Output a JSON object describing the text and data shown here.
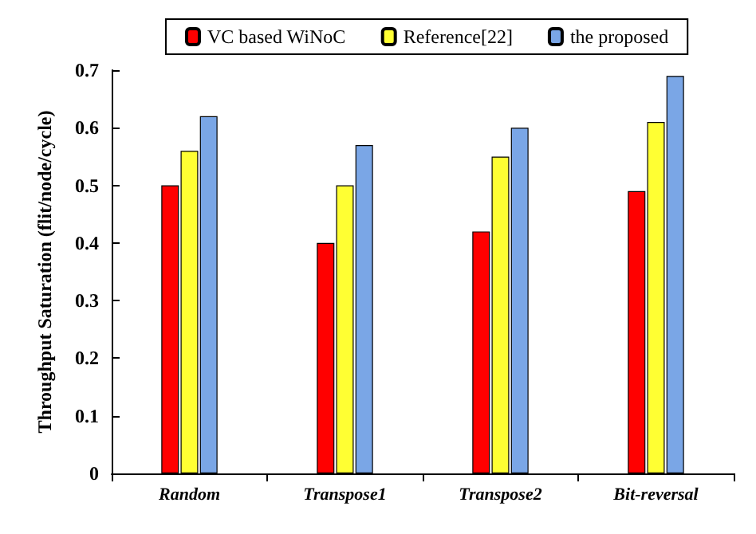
{
  "chart_data": {
    "type": "bar",
    "ylabel": "Throughput Saturation (flit/node/cycle)",
    "categories": [
      "Random",
      "Transpose1",
      "Transpose2",
      "Bit-reversal"
    ],
    "series": [
      {
        "name": "VC based WiNoC",
        "color": "#ff0000",
        "values": [
          0.5,
          0.4,
          0.42,
          0.49
        ]
      },
      {
        "name": "Reference[22]",
        "color": "#ffff33",
        "values": [
          0.56,
          0.5,
          0.55,
          0.61
        ]
      },
      {
        "name": "the proposed",
        "color": "#7aa6e6",
        "values": [
          0.62,
          0.57,
          0.6,
          0.69
        ]
      }
    ],
    "ylim": [
      0,
      0.7
    ],
    "yticks": [
      0,
      0.1,
      0.2,
      0.3,
      0.4,
      0.5,
      0.6,
      0.7
    ],
    "grid": false,
    "legend": "top"
  }
}
